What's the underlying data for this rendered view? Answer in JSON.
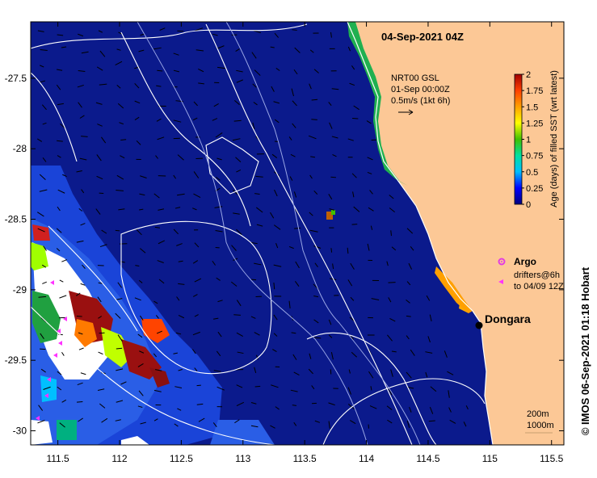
{
  "title": "04-Sep-2021 04Z",
  "credit": "© IMOS 06-Sep-2021 01:18 Hobart",
  "product": {
    "line1": "NRT00 GSL",
    "line2": "01-Sep 00:00Z",
    "line3": "0.5m/s (1kt 6h)"
  },
  "colorbar": {
    "label": "Age (days) of filled SST (wrt latest)",
    "min": 0,
    "max": 2,
    "ticks": [
      "0",
      "0.25",
      "0.5",
      "0.75",
      "1",
      "1.25",
      "1.5",
      "1.75",
      "2"
    ],
    "stops": [
      "#00007f",
      "#0000ff",
      "#00bfff",
      "#00e0a0",
      "#40c000",
      "#ffff00",
      "#ffa000",
      "#ff4000",
      "#a00000"
    ]
  },
  "legend": {
    "argo_label": "Argo",
    "drifters_line1": "drifters@6h",
    "drifters_line2": "to 04/09 12Z"
  },
  "place": {
    "name": "Dongara",
    "lon": 114.93,
    "lat": -29.26
  },
  "depth_legend": {
    "line1": "200m",
    "line2": "1000m"
  },
  "axes": {
    "lon_ticks": [
      "111.5",
      "112",
      "112.5",
      "113",
      "113.5",
      "114",
      "114.5",
      "115",
      "115.5"
    ],
    "lat_ticks": [
      "-27.5",
      "-28",
      "-28.5",
      "-29",
      "-29.5",
      "-30"
    ],
    "lon_range": [
      111.28,
      115.6
    ],
    "lat_range": [
      -30.1,
      -27.1
    ]
  },
  "colors": {
    "ocean": "#0b1a8c",
    "land": "#fcc896",
    "contour": "#ffffff",
    "isobath": "#9aa6e6",
    "argo": "#e23ce2",
    "drifter": "#ff33ff"
  }
}
